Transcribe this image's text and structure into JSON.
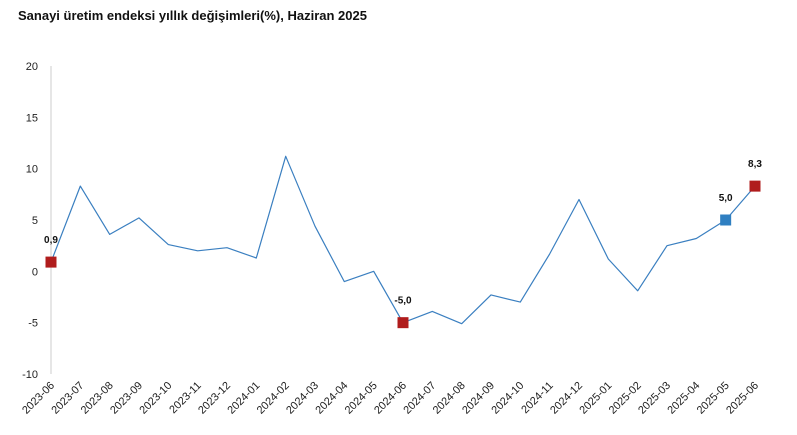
{
  "chart_data": {
    "type": "line",
    "title": "Sanayi üretim endeksi yıllık değişimleri(%), Haziran 2025",
    "xlabel": "",
    "ylabel": "",
    "ylim": [
      -10,
      20
    ],
    "yticks": [
      -10,
      -5,
      0,
      5,
      10,
      15,
      20
    ],
    "grid": false,
    "categories": [
      "2023-06",
      "2023-07",
      "2023-08",
      "2023-09",
      "2023-10",
      "2023-11",
      "2023-12",
      "2024-01",
      "2024-02",
      "2024-03",
      "2024-04",
      "2024-05",
      "2024-06",
      "2024-07",
      "2024-08",
      "2024-09",
      "2024-10",
      "2024-11",
      "2024-12",
      "2025-01",
      "2025-02",
      "2025-03",
      "2025-04",
      "2025-05",
      "2025-06"
    ],
    "series": [
      {
        "values": [
          0.9,
          8.3,
          3.6,
          5.2,
          2.6,
          2.0,
          2.3,
          1.3,
          11.2,
          4.4,
          -1.0,
          0.0,
          -5.0,
          -3.9,
          -5.1,
          -2.3,
          -3.0,
          1.7,
          7.0,
          1.2,
          -1.9,
          2.5,
          3.2,
          5.0,
          8.3
        ],
        "color": "#3a7fc0"
      }
    ],
    "highlights": [
      {
        "category": "2023-06",
        "value": 0.9,
        "label": "0,9",
        "color": "#b01c1c"
      },
      {
        "category": "2024-06",
        "value": -5.0,
        "label": "-5,0",
        "color": "#b01c1c"
      },
      {
        "category": "2025-05",
        "value": 5.0,
        "label": "5,0",
        "color": "#2f7fc1"
      },
      {
        "category": "2025-06",
        "value": 8.3,
        "label": "8,3",
        "color": "#b01c1c"
      }
    ]
  }
}
